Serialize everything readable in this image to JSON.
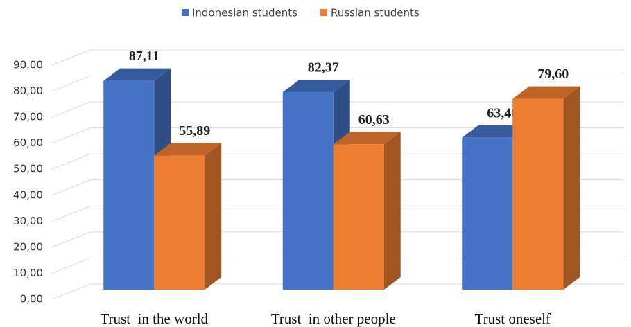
{
  "chart_data": {
    "type": "bar3d",
    "categories": [
      "Trust  in the world",
      "Trust  in other people",
      "Trust oneself"
    ],
    "series": [
      {
        "name": "Indonesian students",
        "color": "#4472c4",
        "values": [
          87.11,
          82.37,
          63.4
        ],
        "value_labels": [
          "87,11",
          "82,37",
          "63,40"
        ]
      },
      {
        "name": "Russian students",
        "color": "#ed7d31",
        "values": [
          55.89,
          60.63,
          79.6
        ],
        "value_labels": [
          "55,89",
          "60,63",
          "79,60"
        ]
      }
    ],
    "ylim": [
      0,
      90
    ],
    "yticks": [
      {
        "value": 0,
        "label": "0,00"
      },
      {
        "value": 10,
        "label": "10,00"
      },
      {
        "value": 20,
        "label": "20,00"
      },
      {
        "value": 30,
        "label": "30,00"
      },
      {
        "value": 40,
        "label": "40,00"
      },
      {
        "value": 50,
        "label": "50,00"
      },
      {
        "value": 60,
        "label": "60,00"
      },
      {
        "value": 70,
        "label": "70,00"
      },
      {
        "value": 80,
        "label": "80,00"
      },
      {
        "value": 90,
        "label": "90,00"
      }
    ],
    "grid": true,
    "legend": "top"
  }
}
